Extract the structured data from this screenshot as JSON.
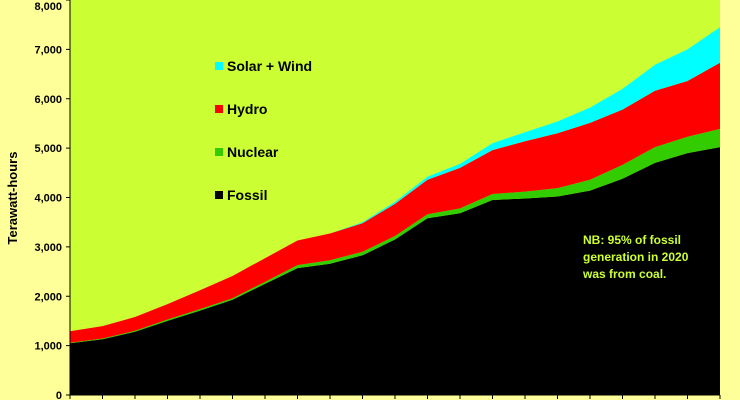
{
  "chart_data": {
    "type": "area",
    "stacked": true,
    "ylabel": "Terawatt-hours",
    "ylim": [
      0,
      8000
    ],
    "yticks": [
      0,
      1000,
      2000,
      3000,
      4000,
      5000,
      6000,
      7000,
      8000
    ],
    "ytick_labels": [
      "0",
      "1,000",
      "2,000",
      "3,000",
      "4,000",
      "5,000",
      "6,000",
      "7,000",
      "8,000"
    ],
    "x": [
      0,
      1,
      2,
      3,
      4,
      5,
      6,
      7,
      8,
      9,
      10,
      11,
      12,
      13,
      14,
      15,
      16,
      17,
      18,
      19,
      20
    ],
    "plot_background_color": "#ccff33",
    "series": [
      {
        "name": "Fossil",
        "color": "#000000",
        "values": [
          1050,
          1130,
          1280,
          1500,
          1710,
          1930,
          2250,
          2570,
          2660,
          2830,
          3150,
          3580,
          3680,
          3950,
          3980,
          4020,
          4140,
          4380,
          4700,
          4900,
          5020
        ]
      },
      {
        "name": "Nuclear",
        "color": "#33cc00",
        "values": [
          10,
          15,
          20,
          30,
          30,
          30,
          40,
          60,
          70,
          70,
          70,
          80,
          100,
          120,
          140,
          170,
          220,
          280,
          320,
          330,
          370
        ]
      },
      {
        "name": "Hydro",
        "color": "#ff0000",
        "values": [
          230,
          250,
          280,
          310,
          380,
          450,
          480,
          500,
          540,
          580,
          650,
          700,
          820,
          890,
          1020,
          1110,
          1150,
          1120,
          1140,
          1130,
          1340
        ]
      },
      {
        "name": "Solar + Wind",
        "color": "#00ffff",
        "values": [
          0,
          0,
          0,
          0,
          0,
          0,
          0,
          0,
          0,
          20,
          40,
          60,
          80,
          140,
          180,
          240,
          310,
          420,
          530,
          640,
          720
        ]
      }
    ],
    "legend": {
      "placement": "top-left",
      "order": [
        "Solar + Wind",
        "Hydro",
        "Nuclear",
        "Fossil"
      ]
    },
    "annotation": {
      "lines": [
        "NB: 95% of fossil",
        "generation in 2020",
        "was from coal."
      ],
      "color": "#ccff33"
    }
  }
}
